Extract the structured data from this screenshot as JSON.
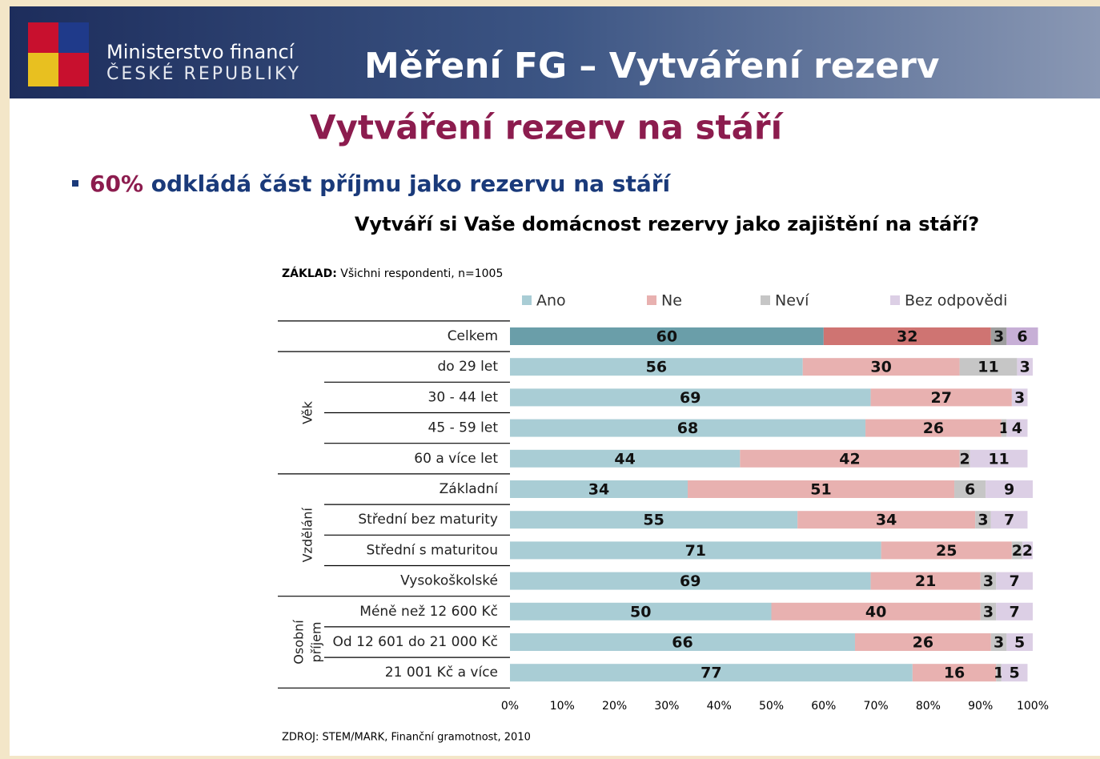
{
  "header": {
    "ministry_line1": "Ministerstvo financí",
    "ministry_line2": "ČESKÉ REPUBLIKY",
    "title": "Měření FG – Vytváření rezerv"
  },
  "slide_title": "Vytváření rezerv na stáří",
  "bullet": {
    "highlight": "60%",
    "text": "odkládá část příjmu jako rezervu na stáří"
  },
  "chart_data": {
    "type": "stacked-bar-horizontal",
    "title": "Vytváří si Vaše domácnost rezervy jako zajištění na stáří?",
    "base_label": "ZÁKLAD:",
    "base_text": "Všichni respondenti, n=1005",
    "source": "ZDROJ: STEM/MARK, Finanční gramotnost, 2010",
    "categories": [
      "Celkem",
      "do 29 let",
      "30 - 44 let",
      "45 - 59 let",
      "60 a více let",
      "Základní",
      "Střední bez maturity",
      "Střední s maturitou",
      "Vysokoškolské",
      "Méně než 12 600 Kč",
      "Od 12 601 do 21 000 Kč",
      "21 001 Kč a více"
    ],
    "groups": [
      {
        "label": [
          "Věk"
        ],
        "from": 1,
        "to": 4
      },
      {
        "label": [
          "Vzdělání"
        ],
        "from": 5,
        "to": 8
      },
      {
        "label": [
          "Osobní",
          "příjem"
        ],
        "from": 9,
        "to": 11
      }
    ],
    "series": [
      {
        "name": "Ano",
        "color": "#a9cdd5",
        "total_color": "#6a9ea9",
        "values": [
          60,
          56,
          69,
          68,
          44,
          34,
          55,
          71,
          69,
          50,
          66,
          77
        ]
      },
      {
        "name": "Ne",
        "color": "#e8b1b0",
        "total_color": "#cf7472",
        "values": [
          32,
          30,
          27,
          26,
          42,
          51,
          34,
          25,
          21,
          40,
          26,
          16
        ]
      },
      {
        "name": "Neví",
        "color": "#c6c6c6",
        "total_color": "#9e9e9e",
        "values": [
          3,
          11,
          null,
          1,
          2,
          6,
          3,
          2,
          3,
          3,
          3,
          1
        ]
      },
      {
        "name": "Bez odpovědi",
        "color": "#dccfe5",
        "total_color": "#c7afd6",
        "values": [
          6,
          3,
          3,
          4,
          11,
          9,
          7,
          2,
          7,
          7,
          5,
          5
        ]
      }
    ],
    "xlim": [
      0,
      100
    ],
    "xticks": [
      {
        "value": 0,
        "label": "0%"
      },
      {
        "value": 10,
        "label": "10%"
      },
      {
        "value": 20,
        "label": "20%"
      },
      {
        "value": 30,
        "label": "30%"
      },
      {
        "value": 40,
        "label": "40%"
      },
      {
        "value": 50,
        "label": "50%"
      },
      {
        "value": 60,
        "label": "60%"
      },
      {
        "value": 70,
        "label": "70%"
      },
      {
        "value": 80,
        "label": "80%"
      },
      {
        "value": 90,
        "label": "90%"
      },
      {
        "value": 100,
        "label": "100%"
      }
    ]
  }
}
